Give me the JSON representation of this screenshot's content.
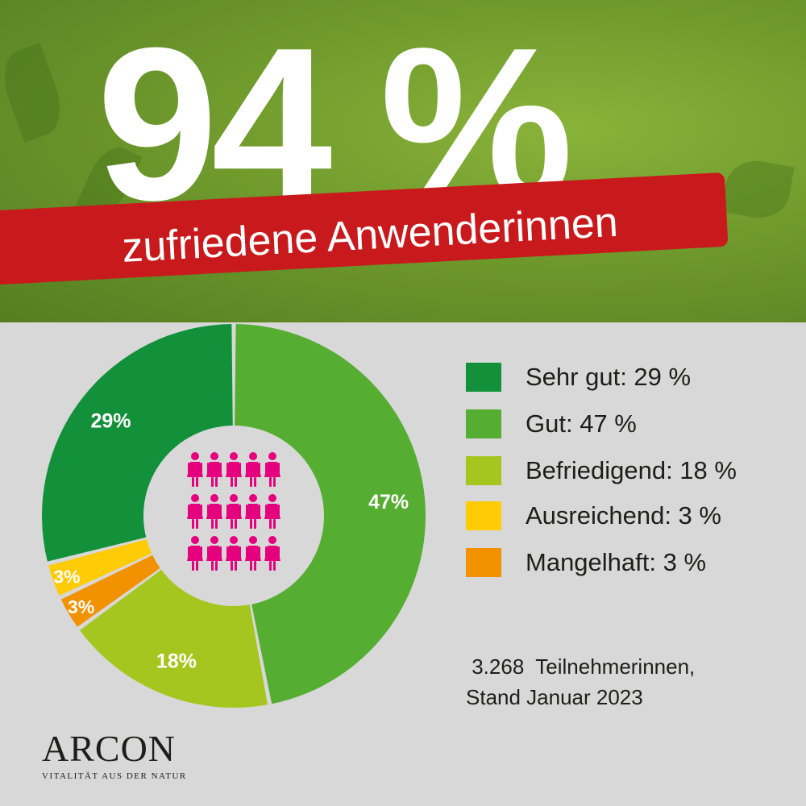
{
  "headline": {
    "value": "94 %",
    "subtitle": "zufriedene Anwenderinnen"
  },
  "chart_data": {
    "type": "pie",
    "style": "donut",
    "title": "",
    "categories": [
      "Sehr gut",
      "Gut",
      "Befriedigend",
      "Ausreichend",
      "Mangelhaft"
    ],
    "values": [
      29,
      47,
      18,
      3,
      3
    ],
    "data_labels": [
      "29%",
      "47%",
      "18%",
      "3%",
      "3%"
    ],
    "colors": [
      "#13913a",
      "#55ad31",
      "#a5c61e",
      "#ffcb05",
      "#f39200"
    ],
    "label_colors": [
      "#ffffff",
      "#ffffff",
      "#ffffff",
      "#ffffff",
      "#ffffff"
    ],
    "legend_position": "right"
  },
  "legend": [
    {
      "label": "Sehr gut: 29 %",
      "color": "#13913a"
    },
    {
      "label": "Gut: 47 %",
      "color": "#55ad31"
    },
    {
      "label": "Befriedigend: 18 %",
      "color": "#a5c61e"
    },
    {
      "label": "Ausreichend: 3 %",
      "color": "#ffcb05"
    },
    {
      "label": "Mangelhaft: 3 %",
      "color": "#f39200"
    }
  ],
  "center_icon": {
    "name": "women-group-icon",
    "color": "#e5007e",
    "count": 15
  },
  "footnote": {
    "line1": " 3.268  Teilnehmerinnen,",
    "line2": "Stand Januar 2023"
  },
  "brand": {
    "name": "ARCON",
    "tagline": "VITALITÄT AUS DER NATUR"
  },
  "colors": {
    "banner": "#c81a1c",
    "background": "#d8d8d8",
    "hero": "#6f9a2c"
  }
}
